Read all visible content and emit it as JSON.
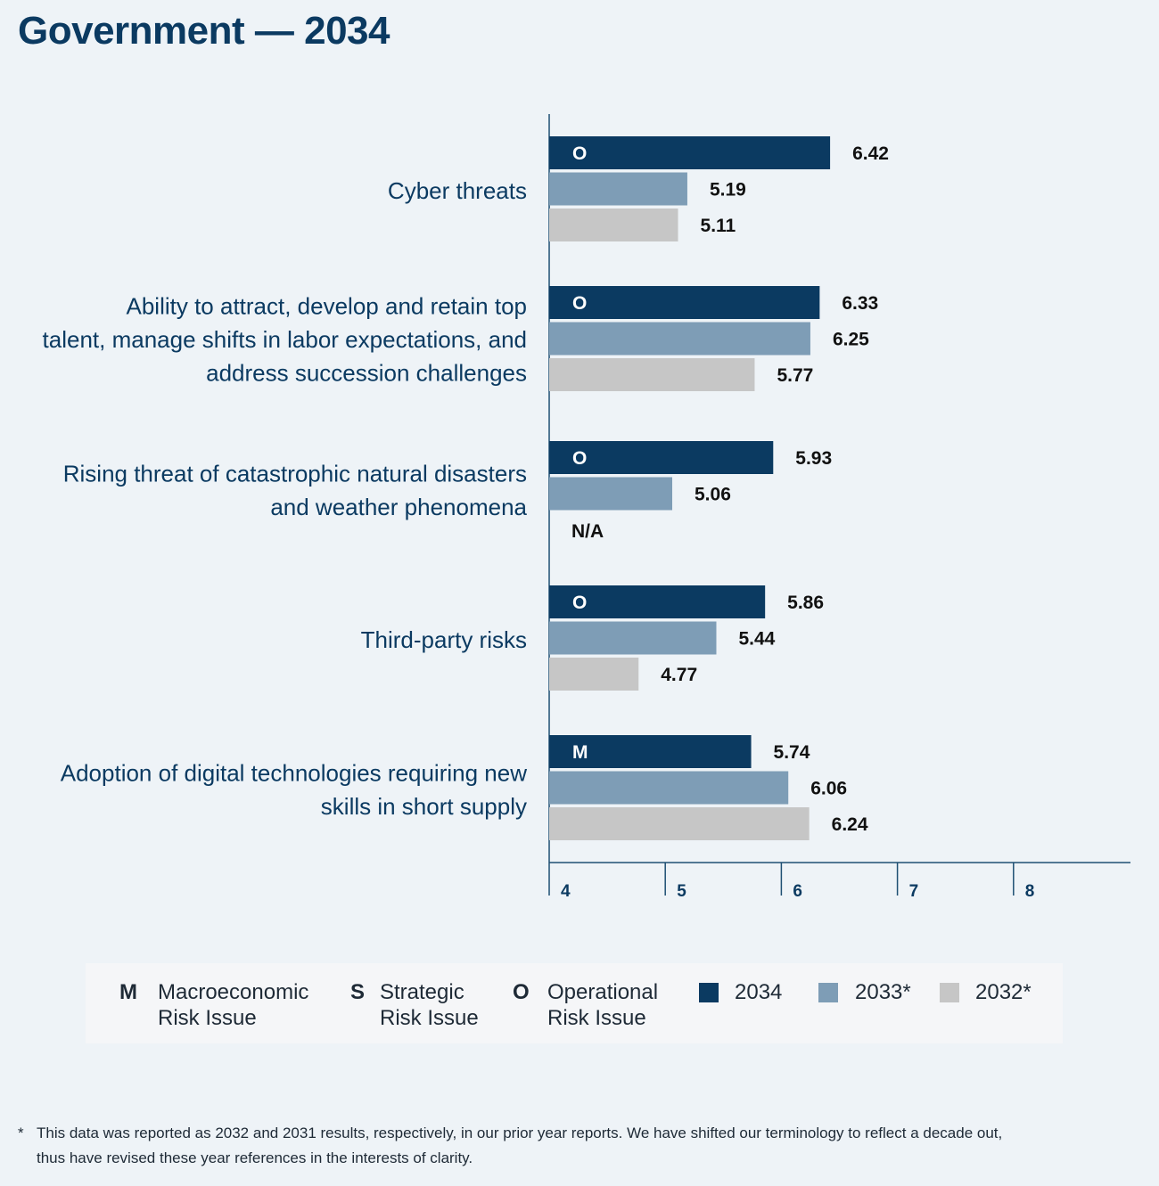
{
  "title": "Government — 2034",
  "chart_data": {
    "type": "bar",
    "orientation": "horizontal",
    "categories": [
      "Cyber threats",
      "Ability to attract, develop and retain top talent, manage shifts in labor expectations, and address succession challenges",
      "Rising threat of catastrophic natural disasters and weather phenomena",
      "Third-party risks",
      "Adoption of digital technologies requiring new skills in short supply"
    ],
    "category_lines": [
      [
        "Cyber threats"
      ],
      [
        "Ability to attract, develop and retain top",
        "talent, manage shifts in labor expectations, and",
        "address succession challenges"
      ],
      [
        "Rising threat of catastrophic natural disasters",
        "and weather phenomena"
      ],
      [
        "Third-party risks"
      ],
      [
        "Adoption of digital technologies requiring new",
        "skills in short supply"
      ]
    ],
    "risk_type": [
      "O",
      "O",
      "O",
      "O",
      "M"
    ],
    "series": [
      {
        "name": "2034",
        "color": "#0b3a61",
        "values": [
          6.42,
          6.33,
          5.93,
          5.86,
          5.74
        ]
      },
      {
        "name": "2033*",
        "color": "#7e9db6",
        "values": [
          5.19,
          6.25,
          5.06,
          5.44,
          6.06
        ]
      },
      {
        "name": "2032*",
        "color": "#c6c6c6",
        "values": [
          5.11,
          5.77,
          null,
          4.77,
          6.24
        ]
      }
    ],
    "missing_label": "N/A",
    "xlim": [
      4,
      9
    ],
    "xticks": [
      4,
      5,
      6,
      7,
      8
    ]
  },
  "legend": {
    "macro_letter": "M",
    "macro_line1": "Macroeconomic",
    "macro_line2": "Risk Issue",
    "strat_letter": "S",
    "strat_line1": "Strategic",
    "strat_line2": "Risk Issue",
    "oper_letter": "O",
    "oper_line1": "Operational",
    "oper_line2": "Risk Issue",
    "y2034": "2034",
    "y2033": "2033*",
    "y2032": "2032*"
  },
  "colors": {
    "navy": "#0b3a61",
    "steel": "#7e9db6",
    "gray": "#c6c6c6"
  },
  "footnote": {
    "star": "*",
    "line1": "This data was reported as 2032 and 2031 results, respectively, in our prior year reports. We have shifted our terminology to reflect a decade out,",
    "line2": "thus have revised these year references in the interests of clarity."
  }
}
